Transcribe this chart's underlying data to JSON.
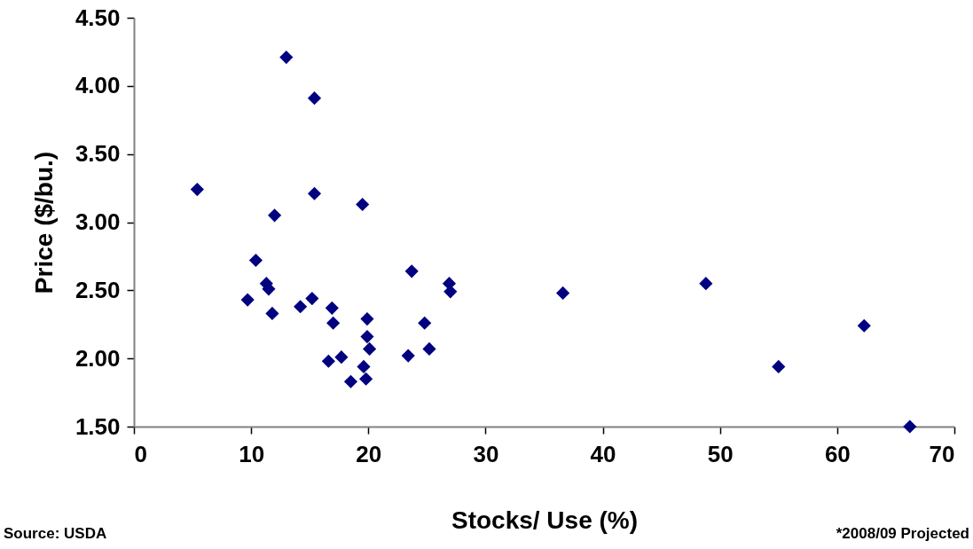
{
  "chart_data": {
    "type": "scatter",
    "xlabel": "Stocks/ Use (%)",
    "ylabel": "Price ($/bu.)",
    "x": [
      5.4,
      13.0,
      15.4,
      15.4,
      19.5,
      12.0,
      10.4,
      11.3,
      11.5,
      9.7,
      15.2,
      11.8,
      14.2,
      16.9,
      17.0,
      23.7,
      26.9,
      27.0,
      19.9,
      19.9,
      20.1,
      24.8,
      25.2,
      23.4,
      16.6,
      17.7,
      19.6,
      18.5,
      19.8,
      36.6,
      48.8,
      55.0,
      62.3,
      66.2
    ],
    "series": [
      {
        "color": "#000080",
        "values": [
          3.24,
          4.21,
          3.91,
          3.21,
          3.13,
          3.05,
          2.72,
          2.55,
          2.51,
          2.43,
          2.44,
          2.33,
          2.38,
          2.37,
          2.26,
          2.64,
          2.55,
          2.49,
          2.29,
          2.16,
          2.07,
          2.26,
          2.07,
          2.02,
          1.98,
          2.01,
          1.94,
          1.83,
          1.85,
          2.48,
          2.55,
          1.94,
          2.24,
          1.5
        ]
      }
    ],
    "xlim": [
      0,
      70
    ],
    "xticks": [
      0,
      10,
      20,
      30,
      40,
      50,
      60,
      70
    ],
    "ylim": [
      1.5,
      4.5
    ],
    "yticks": [
      {
        "value": 1.5,
        "label": "1.50"
      },
      {
        "value": 2,
        "label": "2.00"
      },
      {
        "value": 2.5,
        "label": "2.50"
      },
      {
        "value": 3,
        "label": "3.00"
      },
      {
        "value": 3.5,
        "label": "3.50"
      },
      {
        "value": 4,
        "label": "4.00"
      },
      {
        "value": 4.5,
        "label": "4.50"
      }
    ],
    "marker": "diamond",
    "grid": false,
    "legend": false,
    "annotations": [
      "Source: USDA",
      "*2008/09 Projected"
    ]
  }
}
